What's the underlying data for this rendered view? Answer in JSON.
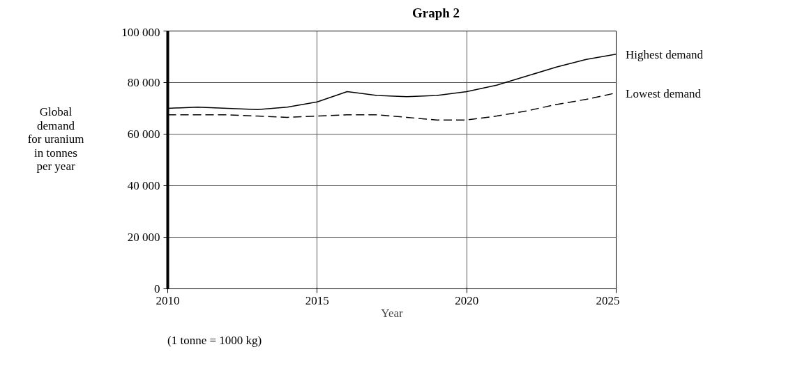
{
  "chart_data": {
    "type": "line",
    "title": "Graph 2",
    "xlabel": "Year",
    "ylabel": "Global\ndemand\nfor uranium\nin tonnes\nper year",
    "annotations": [
      "(1 tonne = 1000 kg)"
    ],
    "xlim": [
      2010,
      2025
    ],
    "xticks": [
      2010,
      2015,
      2020,
      2025
    ],
    "ylim": [
      0,
      100000
    ],
    "yticks": [
      {
        "value": 0,
        "label": "0"
      },
      {
        "value": 20000,
        "label": "20 000"
      },
      {
        "value": 40000,
        "label": "40 000"
      },
      {
        "value": 60000,
        "label": "60 000"
      },
      {
        "value": 80000,
        "label": "80 000"
      },
      {
        "value": 100000,
        "label": "100 000"
      }
    ],
    "grid": true,
    "marker": "none",
    "x": [
      2010,
      2011,
      2012,
      2013,
      2014,
      2015,
      2016,
      2017,
      2018,
      2019,
      2020,
      2021,
      2022,
      2023,
      2024,
      2025
    ],
    "series": [
      {
        "name": "Highest demand",
        "color": "#000000",
        "line_style": "solid",
        "values": [
          70000,
          70500,
          70000,
          69500,
          70500,
          72500,
          76500,
          75000,
          74500,
          75000,
          76500,
          79000,
          82500,
          86000,
          89000,
          91000
        ]
      },
      {
        "name": "Lowest demand",
        "color": "#000000",
        "line_style": "dashed",
        "values": [
          67500,
          67500,
          67500,
          67000,
          66500,
          67000,
          67500,
          67500,
          66500,
          65500,
          65500,
          67000,
          69000,
          71500,
          73500,
          76000
        ]
      }
    ]
  }
}
